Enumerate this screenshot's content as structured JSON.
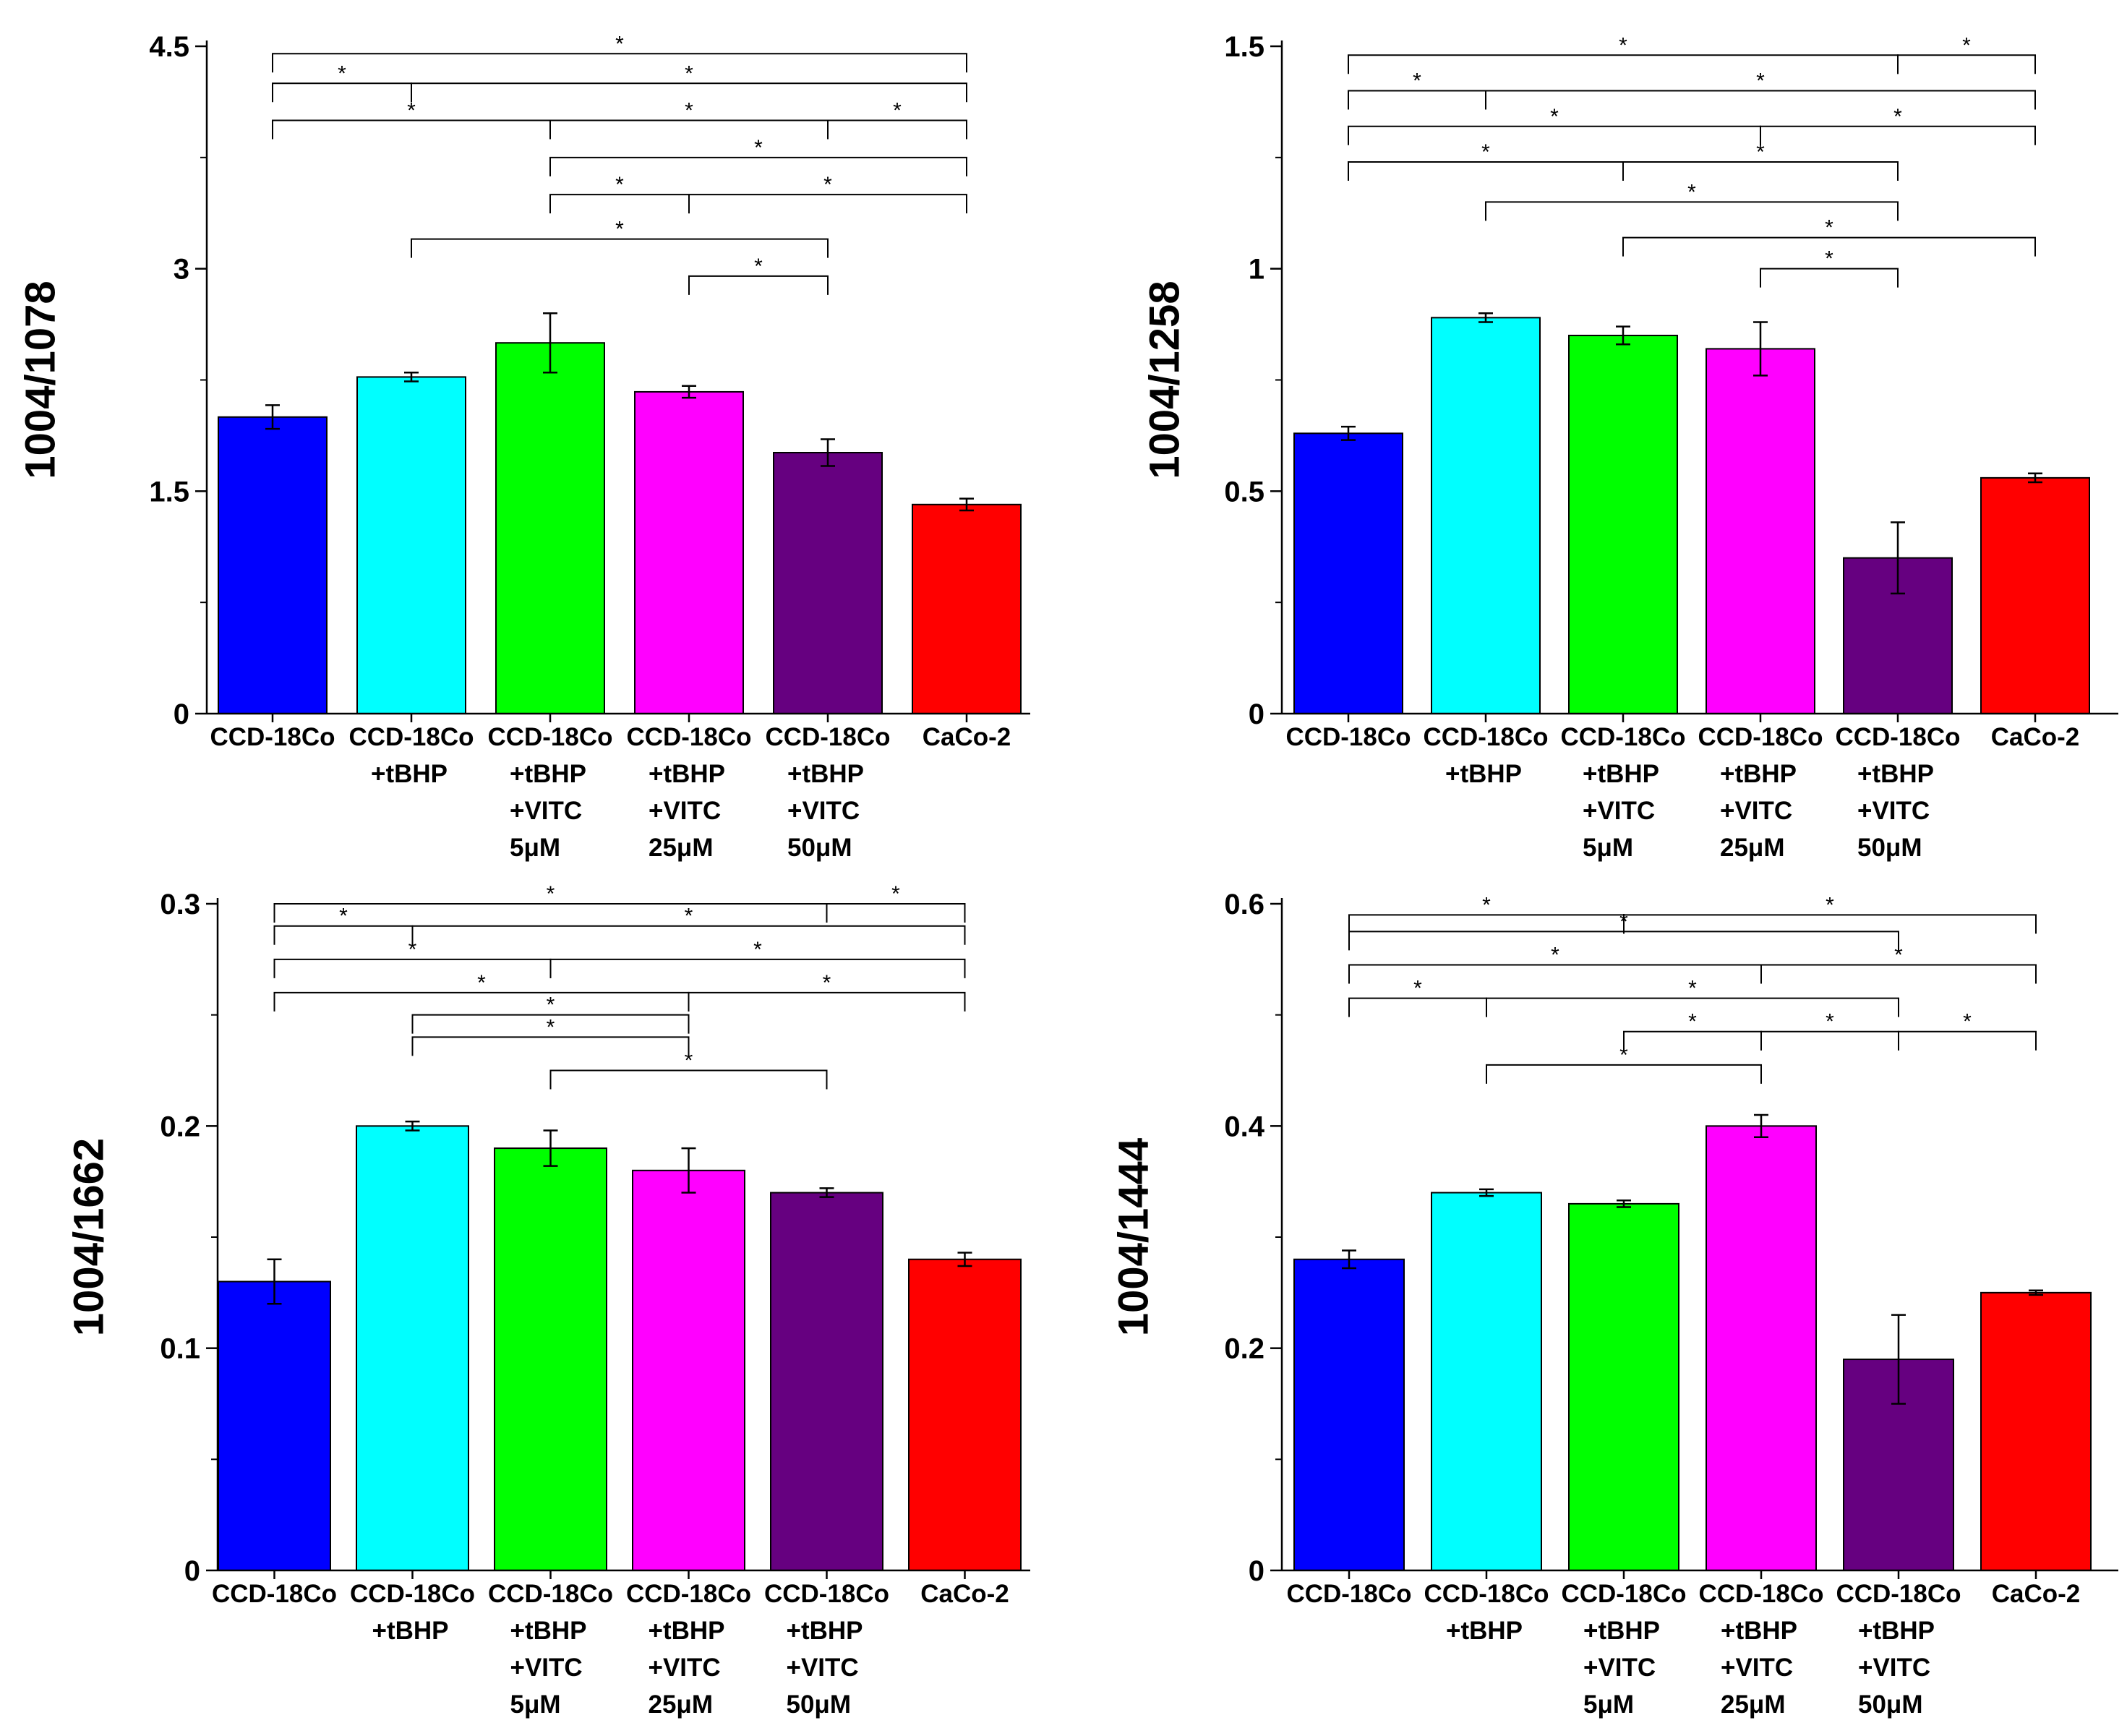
{
  "chart_data": [
    {
      "type": "bar",
      "title": "",
      "xlabel": "",
      "ylabel": "1004/1078",
      "ylim": [
        0,
        4.5
      ],
      "yticks": [
        "0",
        "1.5",
        "3",
        "4.5"
      ],
      "minor_ticks": true,
      "grid": false,
      "categories": [
        [
          "CCD-18Co"
        ],
        [
          "CCD-18Co",
          "+tBHP"
        ],
        [
          "CCD-18Co",
          "+tBHP",
          "+VITC",
          "5μM"
        ],
        [
          "CCD-18Co",
          "+tBHP",
          "+VITC",
          "25μM"
        ],
        [
          "CCD-18Co",
          "+tBHP",
          "+VITC",
          "50μM"
        ],
        [
          "CaCo-2"
        ]
      ],
      "values": [
        2.0,
        2.27,
        2.5,
        2.17,
        1.76,
        1.41
      ],
      "errors": [
        0.08,
        0.03,
        0.2,
        0.04,
        0.09,
        0.04
      ],
      "colors": [
        "#0000ff",
        "#00ffff",
        "#00ff00",
        "#ff00ff",
        "#660080",
        "#ff0000"
      ],
      "significance": [
        {
          "from": 0,
          "to": 5,
          "level": 4.45,
          "label": "*"
        },
        {
          "from": 0,
          "to": 1,
          "level": 4.25,
          "label": "*"
        },
        {
          "from": 1,
          "to": 5,
          "level": 4.25,
          "label": "*"
        },
        {
          "from": 0,
          "to": 2,
          "level": 4.0,
          "label": "*"
        },
        {
          "from": 2,
          "to": 4,
          "level": 4.0,
          "label": "*"
        },
        {
          "from": 4,
          "to": 5,
          "level": 4.0,
          "label": "*"
        },
        {
          "from": 2,
          "to": 5,
          "level": 3.75,
          "label": "*"
        },
        {
          "from": 2,
          "to": 3,
          "level": 3.5,
          "label": "*"
        },
        {
          "from": 3,
          "to": 5,
          "level": 3.5,
          "label": "*"
        },
        {
          "from": 1,
          "to": 4,
          "level": 3.2,
          "label": "*"
        },
        {
          "from": 3,
          "to": 4,
          "level": 2.95,
          "label": "*"
        }
      ]
    },
    {
      "type": "bar",
      "title": "",
      "xlabel": "",
      "ylabel": "1004/1258",
      "ylim": [
        0,
        1.5
      ],
      "yticks": [
        "0",
        "0.5",
        "1",
        "1.5"
      ],
      "minor_ticks": true,
      "grid": false,
      "categories": [
        [
          "CCD-18Co"
        ],
        [
          "CCD-18Co",
          "+tBHP"
        ],
        [
          "CCD-18Co",
          "+tBHP",
          "+VITC",
          "5μM"
        ],
        [
          "CCD-18Co",
          "+tBHP",
          "+VITC",
          "25μM"
        ],
        [
          "CCD-18Co",
          "+tBHP",
          "+VITC",
          "50μM"
        ],
        [
          "CaCo-2"
        ]
      ],
      "values": [
        0.63,
        0.89,
        0.85,
        0.82,
        0.35,
        0.53
      ],
      "errors": [
        0.015,
        0.01,
        0.02,
        0.06,
        0.08,
        0.01
      ],
      "colors": [
        "#0000ff",
        "#00ffff",
        "#00ff00",
        "#ff00ff",
        "#660080",
        "#ff0000"
      ],
      "significance": [
        {
          "from": 0,
          "to": 4,
          "level": 1.48,
          "label": "*"
        },
        {
          "from": 4,
          "to": 5,
          "level": 1.48,
          "label": "*"
        },
        {
          "from": 0,
          "to": 1,
          "level": 1.4,
          "label": "*"
        },
        {
          "from": 1,
          "to": 5,
          "level": 1.4,
          "label": "*"
        },
        {
          "from": 0,
          "to": 3,
          "level": 1.32,
          "label": "*"
        },
        {
          "from": 3,
          "to": 5,
          "level": 1.32,
          "label": "*"
        },
        {
          "from": 0,
          "to": 2,
          "level": 1.24,
          "label": "*"
        },
        {
          "from": 2,
          "to": 4,
          "level": 1.24,
          "label": "*"
        },
        {
          "from": 1,
          "to": 4,
          "level": 1.15,
          "label": "*"
        },
        {
          "from": 2,
          "to": 5,
          "level": 1.07,
          "label": "*"
        },
        {
          "from": 3,
          "to": 4,
          "level": 1.0,
          "label": "*"
        }
      ]
    },
    {
      "type": "bar",
      "title": "",
      "xlabel": "",
      "ylabel": "1004/1662",
      "ylim": [
        0,
        0.3
      ],
      "yticks": [
        "0",
        "0.1",
        "0.2",
        "0.3"
      ],
      "minor_ticks": true,
      "grid": false,
      "categories": [
        [
          "CCD-18Co"
        ],
        [
          "CCD-18Co",
          "+tBHP"
        ],
        [
          "CCD-18Co",
          "+tBHP",
          "+VITC",
          "5μM"
        ],
        [
          "CCD-18Co",
          "+tBHP",
          "+VITC",
          "25μM"
        ],
        [
          "CCD-18Co",
          "+tBHP",
          "+VITC",
          "50μM"
        ],
        [
          "CaCo-2"
        ]
      ],
      "values": [
        0.13,
        0.2,
        0.19,
        0.18,
        0.17,
        0.14
      ],
      "errors": [
        0.01,
        0.002,
        0.008,
        0.01,
        0.002,
        0.003
      ],
      "colors": [
        "#0000ff",
        "#00ffff",
        "#00ff00",
        "#ff00ff",
        "#660080",
        "#ff0000"
      ],
      "significance": [
        {
          "from": 0,
          "to": 4,
          "level": 0.3,
          "label": "*"
        },
        {
          "from": 4,
          "to": 5,
          "level": 0.3,
          "label": "*"
        },
        {
          "from": 0,
          "to": 1,
          "level": 0.29,
          "label": "*"
        },
        {
          "from": 1,
          "to": 5,
          "level": 0.29,
          "label": "*"
        },
        {
          "from": 0,
          "to": 2,
          "level": 0.275,
          "label": "*"
        },
        {
          "from": 2,
          "to": 5,
          "level": 0.275,
          "label": "*"
        },
        {
          "from": 0,
          "to": 3,
          "level": 0.26,
          "label": "*"
        },
        {
          "from": 3,
          "to": 5,
          "level": 0.26,
          "label": "*"
        },
        {
          "from": 1,
          "to": 3,
          "level": 0.25,
          "label": "*"
        },
        {
          "from": 1,
          "to": 3,
          "level": 0.24,
          "label": "*"
        },
        {
          "from": 2,
          "to": 4,
          "level": 0.225,
          "label": "*"
        }
      ]
    },
    {
      "type": "bar",
      "title": "",
      "xlabel": "",
      "ylabel": "1004/1444",
      "ylim": [
        0,
        0.6
      ],
      "yticks": [
        "0",
        "0.2",
        "0.4",
        "0.6"
      ],
      "minor_ticks": true,
      "grid": false,
      "categories": [
        [
          "CCD-18Co"
        ],
        [
          "CCD-18Co",
          "+tBHP"
        ],
        [
          "CCD-18Co",
          "+tBHP",
          "+VITC",
          "5μM"
        ],
        [
          "CCD-18Co",
          "+tBHP",
          "+VITC",
          "25μM"
        ],
        [
          "CCD-18Co",
          "+tBHP",
          "+VITC",
          "50μM"
        ],
        [
          "CaCo-2"
        ]
      ],
      "values": [
        0.28,
        0.34,
        0.33,
        0.4,
        0.19,
        0.25
      ],
      "errors": [
        0.008,
        0.003,
        0.003,
        0.01,
        0.04,
        0.002
      ],
      "colors": [
        "#0000ff",
        "#00ffff",
        "#00ff00",
        "#ff00ff",
        "#660080",
        "#ff0000"
      ],
      "significance": [
        {
          "from": 0,
          "to": 2,
          "level": 0.59,
          "label": "*"
        },
        {
          "from": 2,
          "to": 5,
          "level": 0.59,
          "label": "*"
        },
        {
          "from": 0,
          "to": 4,
          "level": 0.575,
          "label": "*"
        },
        {
          "from": 0,
          "to": 3,
          "level": 0.545,
          "label": "*"
        },
        {
          "from": 3,
          "to": 5,
          "level": 0.545,
          "label": "*"
        },
        {
          "from": 0,
          "to": 1,
          "level": 0.515,
          "label": "*"
        },
        {
          "from": 1,
          "to": 4,
          "level": 0.515,
          "label": "*"
        },
        {
          "from": 2,
          "to": 3,
          "level": 0.485,
          "label": "*"
        },
        {
          "from": 3,
          "to": 4,
          "level": 0.485,
          "label": "*"
        },
        {
          "from": 4,
          "to": 5,
          "level": 0.485,
          "label": "*"
        },
        {
          "from": 1,
          "to": 3,
          "level": 0.455,
          "label": "*"
        }
      ]
    }
  ]
}
